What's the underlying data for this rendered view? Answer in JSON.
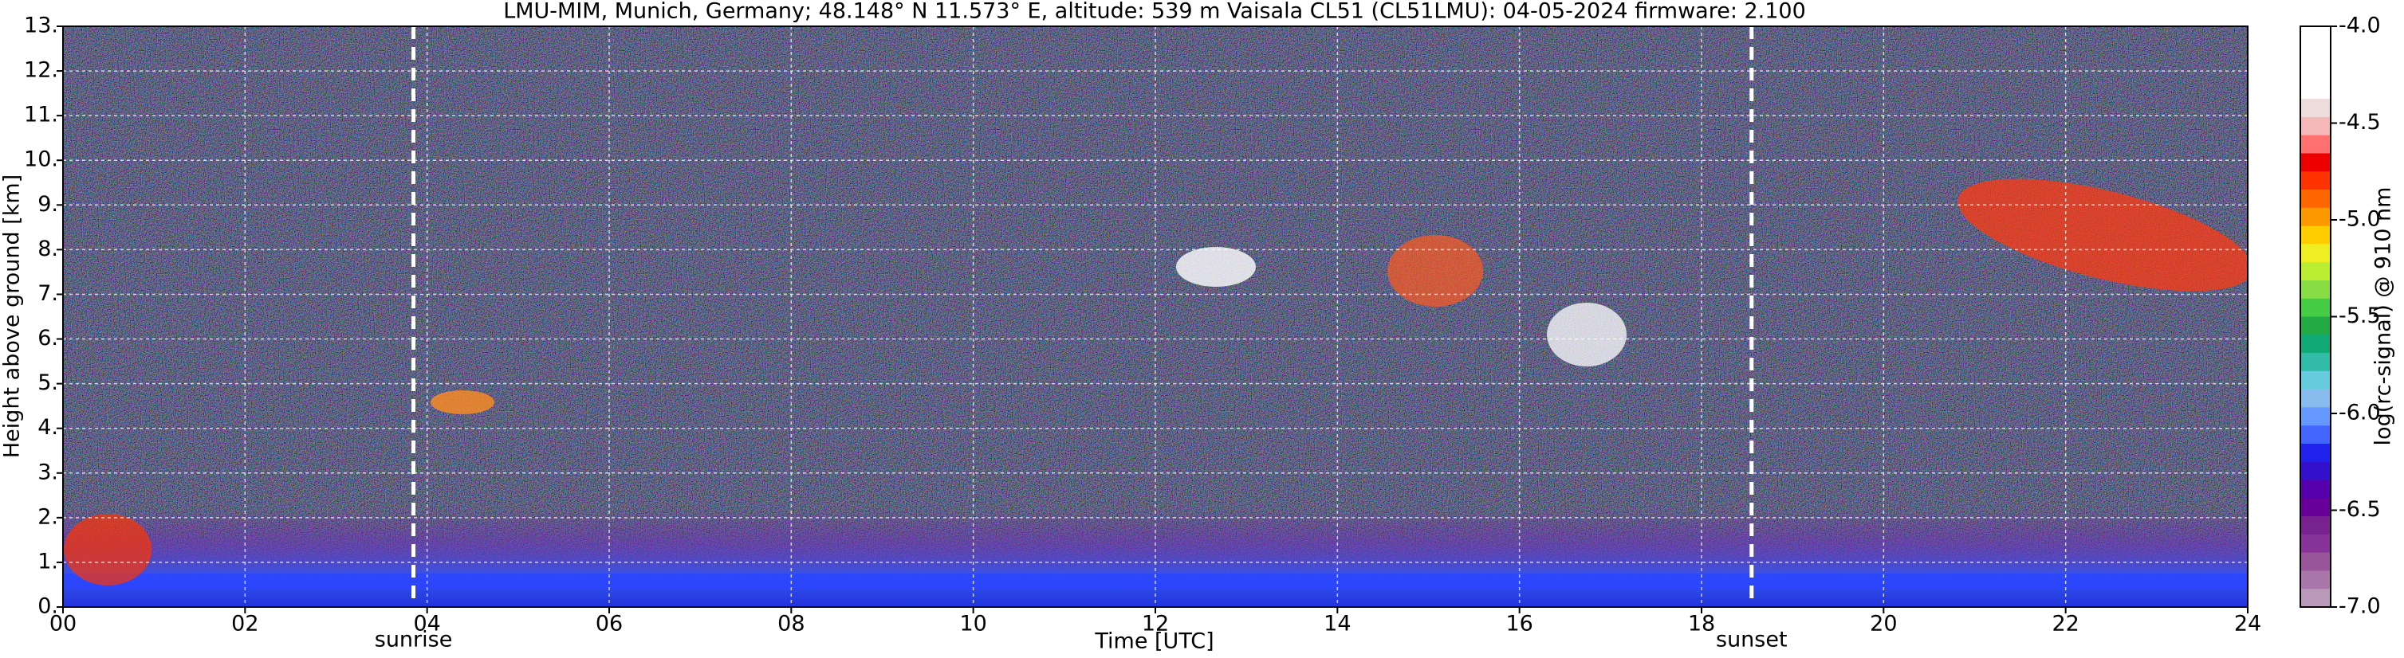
{
  "chart_data": {
    "type": "heatmap",
    "title": "LMU-MIM, Munich, Germany; 48.148° N 11.573° E, altitude: 539 m    Vaisala CL51 (CL51LMU): 04-05-2024    firmware: 2.100",
    "x_label": "Time [UTC]",
    "y_label": "Height above ground [km]",
    "xlim": [
      0,
      24
    ],
    "xticks": [
      {
        "value": 0,
        "label": "00"
      },
      {
        "value": 2,
        "label": "02"
      },
      {
        "value": 4,
        "label": "04"
      },
      {
        "value": 6,
        "label": "06"
      },
      {
        "value": 8,
        "label": "08"
      },
      10,
      12,
      14,
      16,
      18,
      20,
      22,
      24
    ],
    "ylim": [
      0,
      13
    ],
    "yticks": [
      {
        "value": 0,
        "label": "0."
      },
      {
        "value": 1,
        "label": "1."
      },
      {
        "value": 2,
        "label": "2."
      },
      {
        "value": 3,
        "label": "3."
      },
      {
        "value": 4,
        "label": "4."
      },
      {
        "value": 5,
        "label": "5."
      },
      {
        "value": 6,
        "label": "6."
      },
      {
        "value": 7,
        "label": "7."
      },
      {
        "value": 8,
        "label": "8."
      },
      {
        "value": 9,
        "label": "9."
      },
      {
        "value": 10,
        "label": "10."
      },
      {
        "value": 11,
        "label": "11."
      },
      {
        "value": 12,
        "label": "12."
      },
      {
        "value": 13,
        "label": "13."
      }
    ],
    "grid": true,
    "annotations": [
      {
        "x": 3.85,
        "label": "sunrise"
      },
      {
        "x": 18.55,
        "label": "sunset"
      }
    ],
    "colorbar": {
      "label": "log(rc-signal) @ 910 nm",
      "lim": [
        -7.0,
        -4.0
      ],
      "ticks": [
        {
          "value": -4.0,
          "label": "-4.0"
        },
        {
          "value": -4.5,
          "label": "-4.5"
        },
        {
          "value": -5.0,
          "label": "-5.0"
        },
        {
          "value": -5.5,
          "label": "-5.5"
        },
        {
          "value": -6.0,
          "label": "-6.0"
        },
        {
          "value": -6.5,
          "label": "-6.5"
        },
        {
          "value": -7.0,
          "label": "-7.0"
        }
      ],
      "colors": [
        "#ffffff",
        "#ffffff",
        "#ffffff",
        "#ffffff",
        "#eedcdc",
        "#f4b8b8",
        "#ff7070",
        "#ee0000",
        "#ff3300",
        "#ff6600",
        "#ff9900",
        "#ffcc00",
        "#eeee22",
        "#bbee33",
        "#88dd44",
        "#44cc44",
        "#22aa44",
        "#11aa77",
        "#33bbaa",
        "#66ccdd",
        "#88bbee",
        "#6699ff",
        "#4466ff",
        "#2222ee",
        "#3311cc",
        "#5500aa",
        "#660099",
        "#77228f",
        "#883399",
        "#995599",
        "#aa77aa",
        "#bb99bb"
      ]
    }
  }
}
